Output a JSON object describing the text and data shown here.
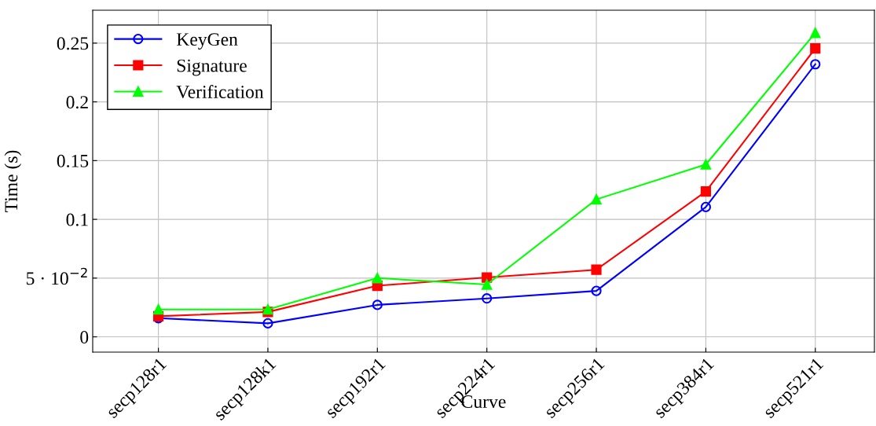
{
  "chart_data": {
    "type": "line",
    "xlabel": "Curve",
    "ylabel": "Time (s)",
    "categories": [
      "secp128r1",
      "secp128k1",
      "secp192r1",
      "secp224r1",
      "secp256r1",
      "secp384r1",
      "secp521r1"
    ],
    "series": [
      {
        "name": "KeyGen",
        "color": "#0000ff",
        "marker": "circle",
        "values": [
          0.0159,
          0.0115,
          0.0272,
          0.0327,
          0.0391,
          0.1105,
          0.232
        ]
      },
      {
        "name": "Signature",
        "color": "#ff0000",
        "marker": "square",
        "values": [
          0.0175,
          0.0212,
          0.0435,
          0.0505,
          0.0571,
          0.1237,
          0.2455
        ]
      },
      {
        "name": "Verification",
        "color": "#00ff00",
        "marker": "triangle",
        "values": [
          0.0233,
          0.0233,
          0.05,
          0.0445,
          0.117,
          0.1467,
          0.2587
        ]
      }
    ],
    "ylim": [
      -0.013,
      0.278
    ],
    "yticks": [
      0,
      {
        "value": 0.05,
        "label": "5 · 10$^{−2}$"
      },
      0.1,
      0.15,
      0.2,
      0.25
    ],
    "grid": true,
    "legend": "top left",
    "line_style": "solid"
  }
}
